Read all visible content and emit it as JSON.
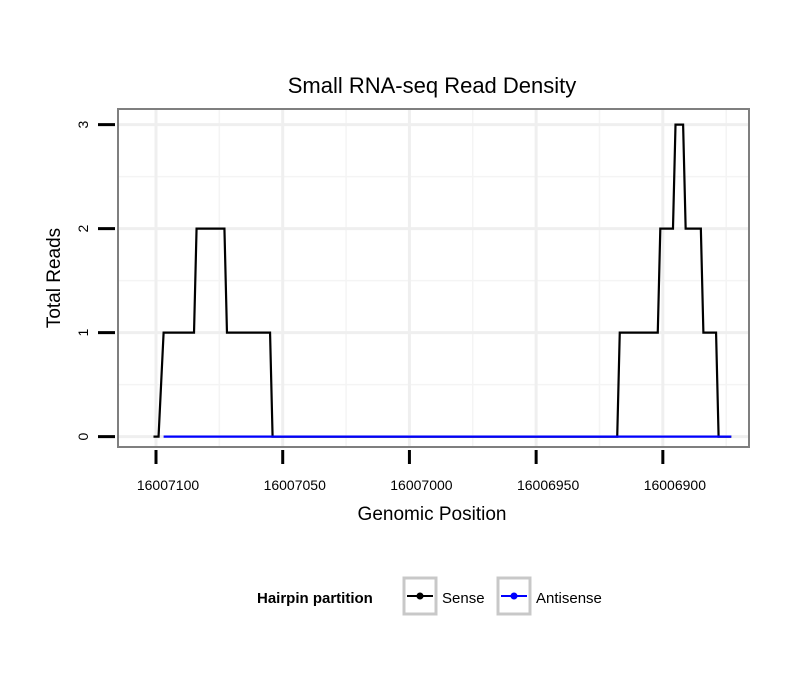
{
  "chart_data": {
    "type": "line",
    "title": "Small RNA-seq Read Density",
    "xlabel": "Genomic Position",
    "ylabel": "Total Reads",
    "x_reversed": true,
    "xlim": [
      16007115,
      16006866
    ],
    "ylim": [
      -0.1,
      3.15
    ],
    "x_ticks": [
      16007100,
      16007050,
      16007000,
      16006950,
      16006900
    ],
    "x_tick_labels": [
      "16007100",
      "16007050",
      "16007000",
      "16006950",
      "16006900"
    ],
    "y_ticks": [
      0,
      1,
      2,
      3
    ],
    "y_tick_labels": [
      "0",
      "1",
      "2",
      "3"
    ],
    "grid": true,
    "legend": {
      "title": "Hairpin partition",
      "position": "bottom"
    },
    "series": [
      {
        "name": "Sense",
        "color": "#000000",
        "step": true,
        "x": [
          16007101,
          16007099,
          16007097,
          16007085,
          16007084,
          16007073,
          16007072,
          16007055,
          16007054,
          16006918,
          16006917,
          16006902,
          16006901,
          16006896,
          16006895,
          16006892,
          16006891,
          16006885,
          16006884,
          16006879,
          16006878,
          16006873
        ],
        "y": [
          0,
          0,
          1,
          1,
          2,
          2,
          1,
          1,
          0,
          0,
          1,
          1,
          2,
          2,
          3,
          3,
          2,
          2,
          1,
          1,
          0,
          0
        ]
      },
      {
        "name": "Antisense",
        "color": "#0000ff",
        "step": true,
        "x": [
          16007097,
          16007054,
          16006918,
          16006873
        ],
        "y": [
          0,
          0,
          0,
          0
        ]
      }
    ]
  }
}
